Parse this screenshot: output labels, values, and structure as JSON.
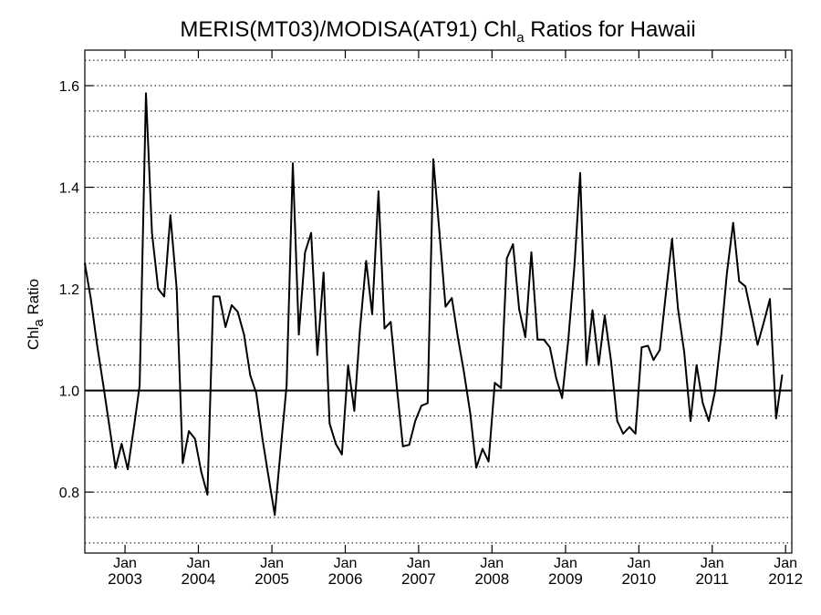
{
  "chart_data": {
    "type": "line",
    "title": {
      "prefix": "MERIS(MT03)/MODISA(AT91)  Chl",
      "subscript": "a",
      "suffix": " Ratios for Hawaii"
    },
    "ylabel": {
      "prefix": "Chl",
      "subscript": "a",
      "suffix": " Ratio"
    },
    "x_axis": {
      "type": "date",
      "range": [
        "2002-06-15",
        "2012-02-01"
      ],
      "tick_month_label": "Jan",
      "tick_years": [
        "2003",
        "2004",
        "2005",
        "2006",
        "2007",
        "2008",
        "2009",
        "2010",
        "2011",
        "2012"
      ]
    },
    "y_axis": {
      "range": [
        0.68,
        1.67
      ],
      "tick_values": [
        0.8,
        1.0,
        1.2,
        1.4,
        1.6
      ],
      "tick_labels": [
        "0.8",
        "1.0",
        "1.2",
        "1.4",
        "1.6"
      ],
      "dotted_grid_step": 0.05
    },
    "reference_line": 1.0,
    "series": [
      {
        "values": [
          [
            "2002-06",
            1.25
          ],
          [
            "2002-07",
            1.18
          ],
          [
            "2002-08",
            1.09
          ],
          [
            "2002-09",
            1.01
          ],
          [
            "2002-10",
            0.93
          ],
          [
            "2002-11",
            0.847
          ],
          [
            "2002-12",
            0.895
          ],
          [
            "2003-01",
            0.845
          ],
          [
            "2003-02",
            0.93
          ],
          [
            "2003-03",
            1.01
          ],
          [
            "2003-04",
            1.585
          ],
          [
            "2003-05",
            1.31
          ],
          [
            "2003-06",
            1.2
          ],
          [
            "2003-07",
            1.185
          ],
          [
            "2003-08",
            1.345
          ],
          [
            "2003-09",
            1.2
          ],
          [
            "2003-10",
            0.857
          ],
          [
            "2003-11",
            0.92
          ],
          [
            "2003-12",
            0.905
          ],
          [
            "2004-01",
            0.84
          ],
          [
            "2004-02",
            0.795
          ],
          [
            "2004-03",
            1.185
          ],
          [
            "2004-04",
            1.185
          ],
          [
            "2004-05",
            1.125
          ],
          [
            "2004-06",
            1.168
          ],
          [
            "2004-07",
            1.155
          ],
          [
            "2004-08",
            1.11
          ],
          [
            "2004-09",
            1.03
          ],
          [
            "2004-10",
            0.995
          ],
          [
            "2004-11",
            0.905
          ],
          [
            "2004-12",
            0.83
          ],
          [
            "2005-01",
            0.755
          ],
          [
            "2005-02",
            0.89
          ],
          [
            "2005-03",
            1.01
          ],
          [
            "2005-04",
            1.447
          ],
          [
            "2005-05",
            1.11
          ],
          [
            "2005-06",
            1.272
          ],
          [
            "2005-07",
            1.31
          ],
          [
            "2005-08",
            1.07
          ],
          [
            "2005-09",
            1.232
          ],
          [
            "2005-10",
            0.935
          ],
          [
            "2005-11",
            0.895
          ],
          [
            "2005-12",
            0.874
          ],
          [
            "2006-01",
            1.05
          ],
          [
            "2006-02",
            0.96
          ],
          [
            "2006-03",
            1.12
          ],
          [
            "2006-04",
            1.255
          ],
          [
            "2006-05",
            1.15
          ],
          [
            "2006-06",
            1.392
          ],
          [
            "2006-07",
            1.122
          ],
          [
            "2006-08",
            1.135
          ],
          [
            "2006-09",
            1.005
          ],
          [
            "2006-10",
            0.89
          ],
          [
            "2006-11",
            0.893
          ],
          [
            "2006-12",
            0.94
          ],
          [
            "2007-01",
            0.97
          ],
          [
            "2007-02",
            0.975
          ],
          [
            "2007-03",
            1.455
          ],
          [
            "2007-04",
            1.31
          ],
          [
            "2007-05",
            1.165
          ],
          [
            "2007-06",
            1.182
          ],
          [
            "2007-07",
            1.105
          ],
          [
            "2007-08",
            1.035
          ],
          [
            "2007-09",
            0.955
          ],
          [
            "2007-10",
            0.848
          ],
          [
            "2007-11",
            0.885
          ],
          [
            "2007-12",
            0.86
          ],
          [
            "2008-01",
            1.015
          ],
          [
            "2008-02",
            1.005
          ],
          [
            "2008-03",
            1.26
          ],
          [
            "2008-04",
            1.288
          ],
          [
            "2008-05",
            1.16
          ],
          [
            "2008-06",
            1.105
          ],
          [
            "2008-07",
            1.272
          ],
          [
            "2008-08",
            1.1
          ],
          [
            "2008-09",
            1.1
          ],
          [
            "2008-10",
            1.085
          ],
          [
            "2008-11",
            1.025
          ],
          [
            "2008-12",
            0.985
          ],
          [
            "2009-01",
            1.1
          ],
          [
            "2009-02",
            1.25
          ],
          [
            "2009-03",
            1.428
          ],
          [
            "2009-04",
            1.05
          ],
          [
            "2009-05",
            1.158
          ],
          [
            "2009-06",
            1.05
          ],
          [
            "2009-07",
            1.148
          ],
          [
            "2009-08",
            1.06
          ],
          [
            "2009-09",
            0.94
          ],
          [
            "2009-10",
            0.915
          ],
          [
            "2009-11",
            0.928
          ],
          [
            "2009-12",
            0.915
          ],
          [
            "2010-01",
            1.085
          ],
          [
            "2010-02",
            1.088
          ],
          [
            "2010-03",
            1.06
          ],
          [
            "2010-04",
            1.08
          ],
          [
            "2010-05",
            1.19
          ],
          [
            "2010-06",
            1.298
          ],
          [
            "2010-07",
            1.16
          ],
          [
            "2010-08",
            1.075
          ],
          [
            "2010-09",
            0.94
          ],
          [
            "2010-10",
            1.05
          ],
          [
            "2010-11",
            0.975
          ],
          [
            "2010-12",
            0.94
          ],
          [
            "2011-01",
            0.998
          ],
          [
            "2011-02",
            1.11
          ],
          [
            "2011-03",
            1.23
          ],
          [
            "2011-04",
            1.33
          ],
          [
            "2011-05",
            1.215
          ],
          [
            "2011-06",
            1.205
          ],
          [
            "2011-07",
            1.15
          ],
          [
            "2011-08",
            1.09
          ],
          [
            "2011-09",
            1.135
          ],
          [
            "2011-10",
            1.18
          ],
          [
            "2011-11",
            0.945
          ],
          [
            "2011-12",
            1.03
          ]
        ]
      }
    ]
  }
}
